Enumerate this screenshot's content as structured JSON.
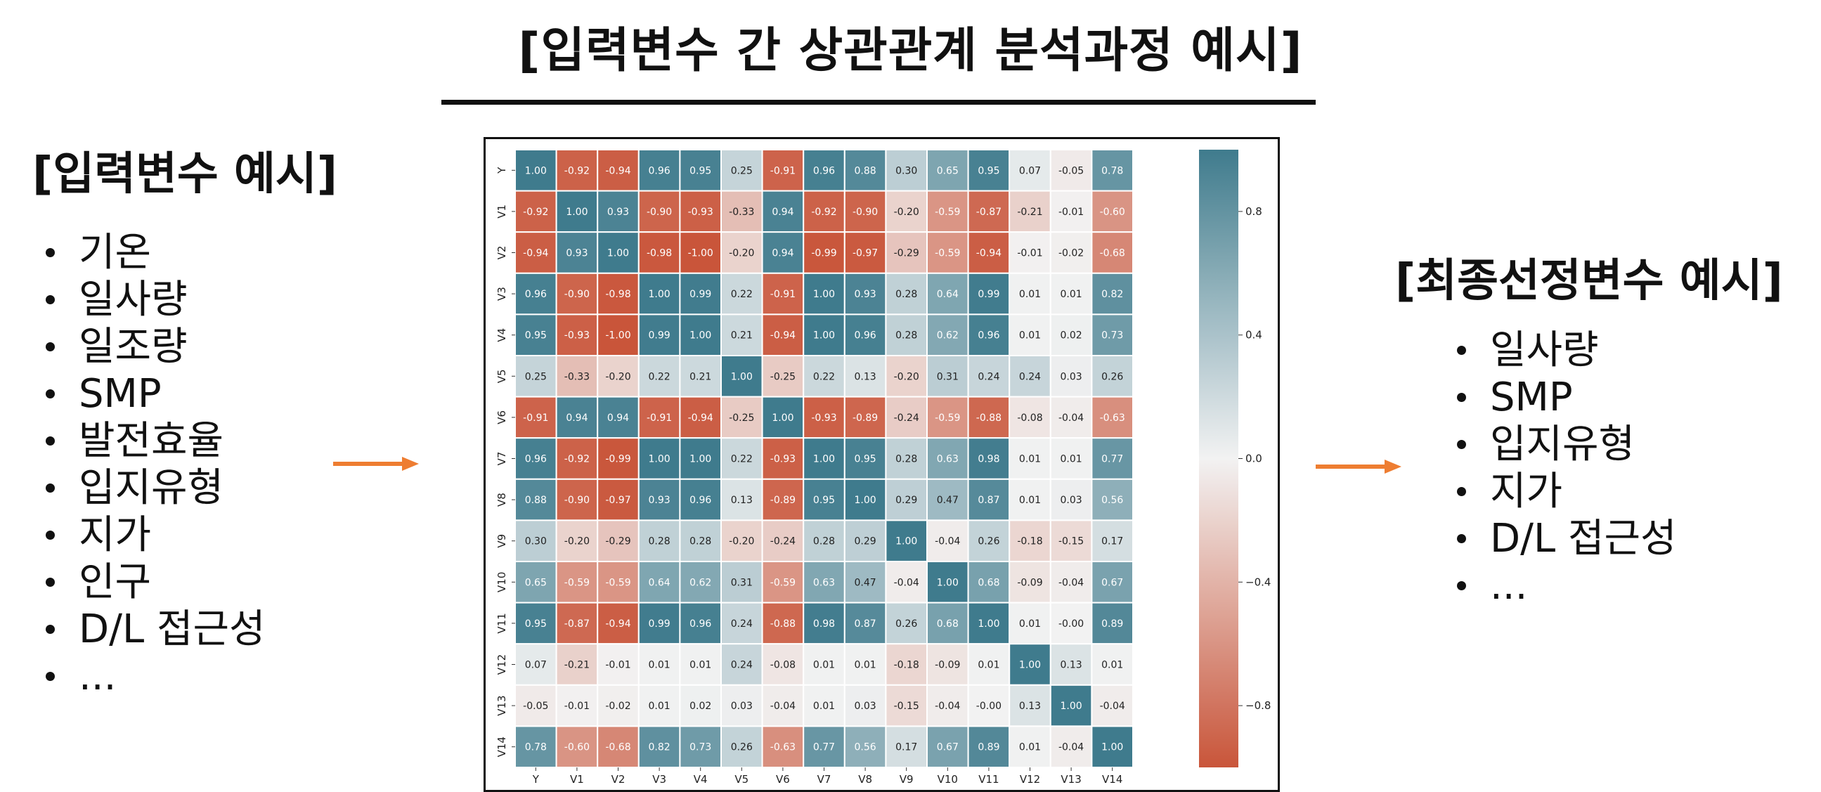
{
  "title": "[입력변수 간 상관관계 분석과정 예시]",
  "left_heading": "[입력변수 예시]",
  "left_items": [
    "기온",
    "일사량",
    "일조량",
    "SMP",
    "발전효율",
    "입지유형",
    "지가",
    "인구",
    "D/L 접근성",
    "..."
  ],
  "right_heading": "[최종선정변수 예시]",
  "right_items": [
    "일사량",
    "SMP",
    "입지유형",
    "지가",
    "D/L 접근성",
    "..."
  ],
  "arrow_color": "#ee7d31",
  "chart_data": {
    "type": "heatmap",
    "x_labels": [
      "Y",
      "V1",
      "V2",
      "V3",
      "V4",
      "V5",
      "V6",
      "V7",
      "V8",
      "V9",
      "V10",
      "V11",
      "V12",
      "V13",
      "V14"
    ],
    "y_labels": [
      "Y",
      "V1",
      "V2",
      "V3",
      "V4",
      "V5",
      "V6",
      "V7",
      "V8",
      "V9",
      "V10",
      "V11",
      "V12",
      "V13",
      "V14"
    ],
    "values": [
      [
        1.0,
        -0.92,
        -0.94,
        0.96,
        0.95,
        0.25,
        -0.91,
        0.96,
        0.88,
        0.3,
        0.65,
        0.95,
        0.07,
        -0.05,
        0.78
      ],
      [
        -0.92,
        1.0,
        0.93,
        -0.9,
        -0.93,
        -0.33,
        0.94,
        -0.92,
        -0.9,
        -0.2,
        -0.59,
        -0.87,
        -0.21,
        -0.01,
        -0.6
      ],
      [
        -0.94,
        0.93,
        1.0,
        -0.98,
        -1.0,
        -0.2,
        0.94,
        -0.99,
        -0.97,
        -0.29,
        -0.59,
        -0.94,
        -0.01,
        -0.02,
        -0.68
      ],
      [
        0.96,
        -0.9,
        -0.98,
        1.0,
        0.99,
        0.22,
        -0.91,
        1.0,
        0.93,
        0.28,
        0.64,
        0.99,
        0.01,
        0.01,
        0.82
      ],
      [
        0.95,
        -0.93,
        -1.0,
        0.99,
        1.0,
        0.21,
        -0.94,
        1.0,
        0.96,
        0.28,
        0.62,
        0.96,
        0.01,
        0.02,
        0.73
      ],
      [
        0.25,
        -0.33,
        -0.2,
        0.22,
        0.21,
        1.0,
        -0.25,
        0.22,
        0.13,
        -0.2,
        0.31,
        0.24,
        0.24,
        0.03,
        0.26
      ],
      [
        -0.91,
        0.94,
        0.94,
        -0.91,
        -0.94,
        -0.25,
        1.0,
        -0.93,
        -0.89,
        -0.24,
        -0.59,
        -0.88,
        -0.08,
        -0.04,
        -0.63
      ],
      [
        0.96,
        -0.92,
        -0.99,
        1.0,
        1.0,
        0.22,
        -0.93,
        1.0,
        0.95,
        0.28,
        0.63,
        0.98,
        0.01,
        0.01,
        0.77
      ],
      [
        0.88,
        -0.9,
        -0.97,
        0.93,
        0.96,
        0.13,
        -0.89,
        0.95,
        1.0,
        0.29,
        0.47,
        0.87,
        0.01,
        0.03,
        0.56
      ],
      [
        0.3,
        -0.2,
        -0.29,
        0.28,
        0.28,
        -0.2,
        -0.24,
        0.28,
        0.29,
        1.0,
        -0.04,
        0.26,
        -0.18,
        -0.15,
        0.17
      ],
      [
        0.65,
        -0.59,
        -0.59,
        0.64,
        0.62,
        0.31,
        -0.59,
        0.63,
        0.47,
        -0.04,
        1.0,
        0.68,
        -0.09,
        -0.04,
        0.67
      ],
      [
        0.95,
        -0.87,
        -0.94,
        0.99,
        0.96,
        0.24,
        -0.88,
        0.98,
        0.87,
        0.26,
        0.68,
        1.0,
        0.01,
        -0.0,
        0.89
      ],
      [
        0.07,
        -0.21,
        -0.01,
        0.01,
        0.01,
        0.24,
        -0.08,
        0.01,
        0.01,
        -0.18,
        -0.09,
        0.01,
        1.0,
        0.13,
        0.01
      ],
      [
        -0.05,
        -0.01,
        -0.02,
        0.01,
        0.02,
        0.03,
        -0.04,
        0.01,
        0.03,
        -0.15,
        -0.04,
        -0.0,
        0.13,
        1.0,
        -0.04
      ],
      [
        0.78,
        -0.6,
        -0.68,
        0.82,
        0.73,
        0.26,
        -0.63,
        0.77,
        0.56,
        0.17,
        0.67,
        0.89,
        0.01,
        -0.04,
        1.0
      ]
    ],
    "value_labels": [
      [
        "1.00",
        "-0.92",
        "-0.94",
        "0.96",
        "0.95",
        "0.25",
        "-0.91",
        "0.96",
        "0.88",
        "0.30",
        "0.65",
        "0.95",
        "0.07",
        "-0.05",
        "0.78"
      ],
      [
        "-0.92",
        "1.00",
        "0.93",
        "-0.90",
        "-0.93",
        "-0.33",
        "0.94",
        "-0.92",
        "-0.90",
        "-0.20",
        "-0.59",
        "-0.87",
        "-0.21",
        "-0.01",
        "-0.60"
      ],
      [
        "-0.94",
        "0.93",
        "1.00",
        "-0.98",
        "-1.00",
        "-0.20",
        "0.94",
        "-0.99",
        "-0.97",
        "-0.29",
        "-0.59",
        "-0.94",
        "-0.01",
        "-0.02",
        "-0.68"
      ],
      [
        "0.96",
        "-0.90",
        "-0.98",
        "1.00",
        "0.99",
        "0.22",
        "-0.91",
        "1.00",
        "0.93",
        "0.28",
        "0.64",
        "0.99",
        "0.01",
        "0.01",
        "0.82"
      ],
      [
        "0.95",
        "-0.93",
        "-1.00",
        "0.99",
        "1.00",
        "0.21",
        "-0.94",
        "1.00",
        "0.96",
        "0.28",
        "0.62",
        "0.96",
        "0.01",
        "0.02",
        "0.73"
      ],
      [
        "0.25",
        "-0.33",
        "-0.20",
        "0.22",
        "0.21",
        "1.00",
        "-0.25",
        "0.22",
        "0.13",
        "-0.20",
        "0.31",
        "0.24",
        "0.24",
        "0.03",
        "0.26"
      ],
      [
        "-0.91",
        "0.94",
        "0.94",
        "-0.91",
        "-0.94",
        "-0.25",
        "1.00",
        "-0.93",
        "-0.89",
        "-0.24",
        "-0.59",
        "-0.88",
        "-0.08",
        "-0.04",
        "-0.63"
      ],
      [
        "0.96",
        "-0.92",
        "-0.99",
        "1.00",
        "1.00",
        "0.22",
        "-0.93",
        "1.00",
        "0.95",
        "0.28",
        "0.63",
        "0.98",
        "0.01",
        "0.01",
        "0.77"
      ],
      [
        "0.88",
        "-0.90",
        "-0.97",
        "0.93",
        "0.96",
        "0.13",
        "-0.89",
        "0.95",
        "1.00",
        "0.29",
        "0.47",
        "0.87",
        "0.01",
        "0.03",
        "0.56"
      ],
      [
        "0.30",
        "-0.20",
        "-0.29",
        "0.28",
        "0.28",
        "-0.20",
        "-0.24",
        "0.28",
        "0.29",
        "1.00",
        "-0.04",
        "0.26",
        "-0.18",
        "-0.15",
        "0.17"
      ],
      [
        "0.65",
        "-0.59",
        "-0.59",
        "0.64",
        "0.62",
        "0.31",
        "-0.59",
        "0.63",
        "0.47",
        "-0.04",
        "1.00",
        "0.68",
        "-0.09",
        "-0.04",
        "0.67"
      ],
      [
        "0.95",
        "-0.87",
        "-0.94",
        "0.99",
        "0.96",
        "0.24",
        "-0.88",
        "0.98",
        "0.87",
        "0.26",
        "0.68",
        "1.00",
        "0.01",
        "-0.00",
        "0.89"
      ],
      [
        "0.07",
        "-0.21",
        "-0.01",
        "0.01",
        "0.01",
        "0.24",
        "-0.08",
        "0.01",
        "0.01",
        "-0.18",
        "-0.09",
        "0.01",
        "1.00",
        "0.13",
        "0.01"
      ],
      [
        "-0.05",
        "-0.01",
        "-0.02",
        "0.01",
        "0.02",
        "0.03",
        "-0.04",
        "0.01",
        "0.03",
        "-0.15",
        "-0.04",
        "-0.00",
        "0.13",
        "1.00",
        "-0.04"
      ],
      [
        "0.78",
        "-0.60",
        "-0.68",
        "0.82",
        "0.73",
        "0.26",
        "-0.63",
        "0.77",
        "0.56",
        "0.17",
        "0.67",
        "0.89",
        "0.01",
        "-0.04",
        "1.00"
      ]
    ],
    "colorbar": {
      "range": [
        -1,
        1
      ],
      "ticks": [
        0.8,
        0.4,
        0.0,
        -0.4,
        -0.8
      ],
      "tick_labels": [
        "0.8",
        "0.4",
        "0.0",
        "−0.4",
        "−0.8"
      ]
    },
    "colormap": {
      "negative": "#c9553a",
      "neutral": "#f2f2f2",
      "positive": "#3f7b8d"
    }
  }
}
